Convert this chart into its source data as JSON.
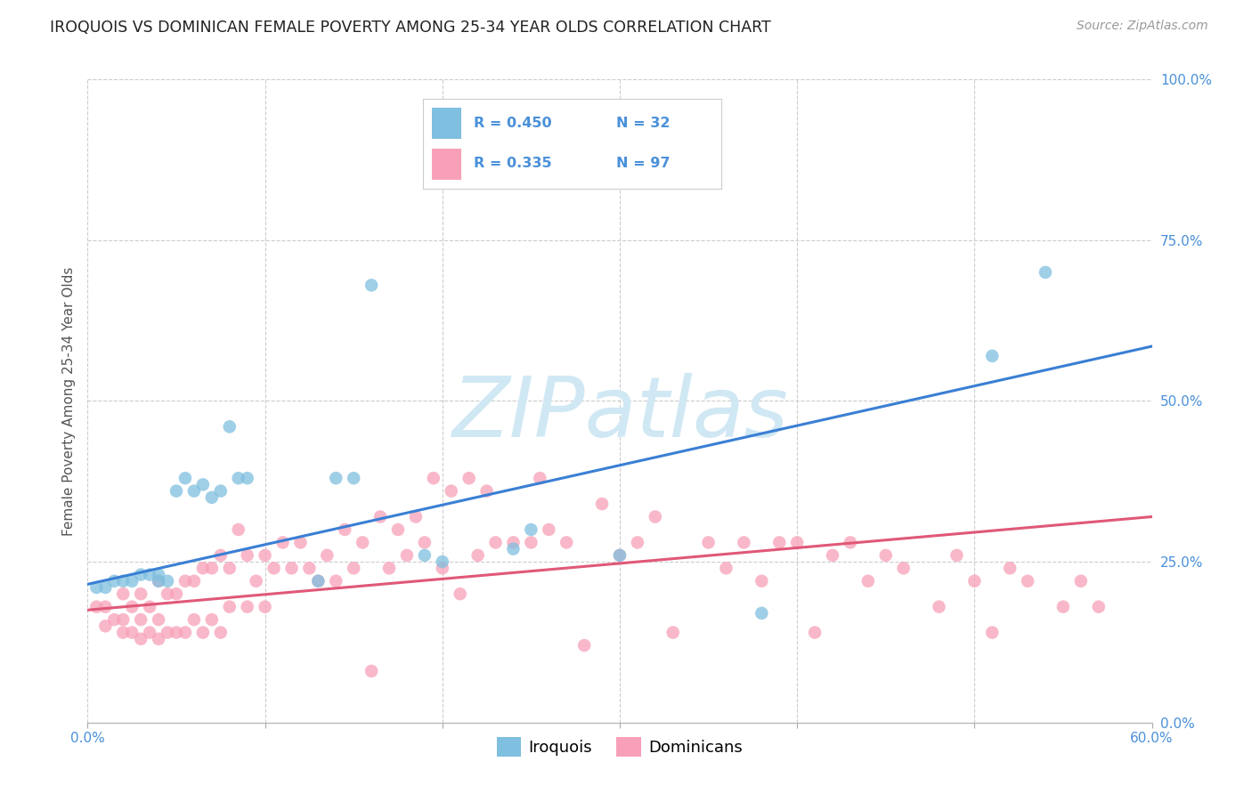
{
  "title": "IROQUOIS VS DOMINICAN FEMALE POVERTY AMONG 25-34 YEAR OLDS CORRELATION CHART",
  "source": "Source: ZipAtlas.com",
  "ylabel": "Female Poverty Among 25-34 Year Olds",
  "xlim": [
    0.0,
    0.6
  ],
  "ylim": [
    0.0,
    1.0
  ],
  "xticks": [
    0.0,
    0.1,
    0.2,
    0.3,
    0.4,
    0.5,
    0.6
  ],
  "yticks": [
    0.0,
    0.25,
    0.5,
    0.75,
    1.0
  ],
  "ytick_labels": [
    "0.0%",
    "25.0%",
    "50.0%",
    "75.0%",
    "100.0%"
  ],
  "iroquois_color": "#7fbfdf",
  "dominican_color": "#f8a0b8",
  "iroquois_line_color": "#3a7fd4",
  "dominican_line_color": "#e05878",
  "watermark_text": "ZIPatlas",
  "watermark_color": "#d0e8f4",
  "background_color": "#ffffff",
  "grid_color": "#cccccc",
  "iroquois_x": [
    0.005,
    0.01,
    0.015,
    0.02,
    0.025,
    0.03,
    0.035,
    0.04,
    0.04,
    0.045,
    0.05,
    0.055,
    0.06,
    0.065,
    0.07,
    0.075,
    0.08,
    0.085,
    0.09,
    0.13,
    0.14,
    0.15,
    0.16,
    0.19,
    0.2,
    0.24,
    0.25,
    0.26,
    0.3,
    0.38,
    0.51,
    0.54
  ],
  "iroquois_y": [
    0.21,
    0.21,
    0.22,
    0.22,
    0.22,
    0.23,
    0.23,
    0.22,
    0.23,
    0.22,
    0.36,
    0.38,
    0.36,
    0.37,
    0.35,
    0.36,
    0.46,
    0.38,
    0.38,
    0.22,
    0.38,
    0.38,
    0.68,
    0.26,
    0.25,
    0.27,
    0.3,
    0.85,
    0.26,
    0.17,
    0.57,
    0.7
  ],
  "dominican_x": [
    0.005,
    0.01,
    0.01,
    0.015,
    0.02,
    0.02,
    0.02,
    0.025,
    0.025,
    0.03,
    0.03,
    0.03,
    0.035,
    0.035,
    0.04,
    0.04,
    0.04,
    0.045,
    0.045,
    0.05,
    0.05,
    0.055,
    0.055,
    0.06,
    0.06,
    0.065,
    0.065,
    0.07,
    0.07,
    0.075,
    0.075,
    0.08,
    0.08,
    0.085,
    0.09,
    0.09,
    0.095,
    0.1,
    0.1,
    0.105,
    0.11,
    0.115,
    0.12,
    0.125,
    0.13,
    0.135,
    0.14,
    0.145,
    0.15,
    0.155,
    0.16,
    0.165,
    0.17,
    0.175,
    0.18,
    0.185,
    0.19,
    0.195,
    0.2,
    0.205,
    0.21,
    0.215,
    0.22,
    0.225,
    0.23,
    0.24,
    0.25,
    0.255,
    0.26,
    0.27,
    0.28,
    0.29,
    0.3,
    0.31,
    0.32,
    0.33,
    0.35,
    0.36,
    0.37,
    0.38,
    0.39,
    0.4,
    0.41,
    0.42,
    0.43,
    0.44,
    0.45,
    0.46,
    0.48,
    0.49,
    0.5,
    0.51,
    0.52,
    0.53,
    0.55,
    0.56,
    0.57
  ],
  "dominican_y": [
    0.18,
    0.15,
    0.18,
    0.16,
    0.14,
    0.16,
    0.2,
    0.14,
    0.18,
    0.13,
    0.16,
    0.2,
    0.14,
    0.18,
    0.13,
    0.16,
    0.22,
    0.14,
    0.2,
    0.14,
    0.2,
    0.14,
    0.22,
    0.16,
    0.22,
    0.14,
    0.24,
    0.16,
    0.24,
    0.14,
    0.26,
    0.18,
    0.24,
    0.3,
    0.18,
    0.26,
    0.22,
    0.18,
    0.26,
    0.24,
    0.28,
    0.24,
    0.28,
    0.24,
    0.22,
    0.26,
    0.22,
    0.3,
    0.24,
    0.28,
    0.08,
    0.32,
    0.24,
    0.3,
    0.26,
    0.32,
    0.28,
    0.38,
    0.24,
    0.36,
    0.2,
    0.38,
    0.26,
    0.36,
    0.28,
    0.28,
    0.28,
    0.38,
    0.3,
    0.28,
    0.12,
    0.34,
    0.26,
    0.28,
    0.32,
    0.14,
    0.28,
    0.24,
    0.28,
    0.22,
    0.28,
    0.28,
    0.14,
    0.26,
    0.28,
    0.22,
    0.26,
    0.24,
    0.18,
    0.26,
    0.22,
    0.14,
    0.24,
    0.22,
    0.18,
    0.22,
    0.18
  ],
  "irq_line_x": [
    0.0,
    0.6
  ],
  "irq_line_y": [
    0.215,
    0.585
  ],
  "dom_line_x": [
    0.0,
    0.6
  ],
  "dom_line_y": [
    0.175,
    0.32
  ]
}
